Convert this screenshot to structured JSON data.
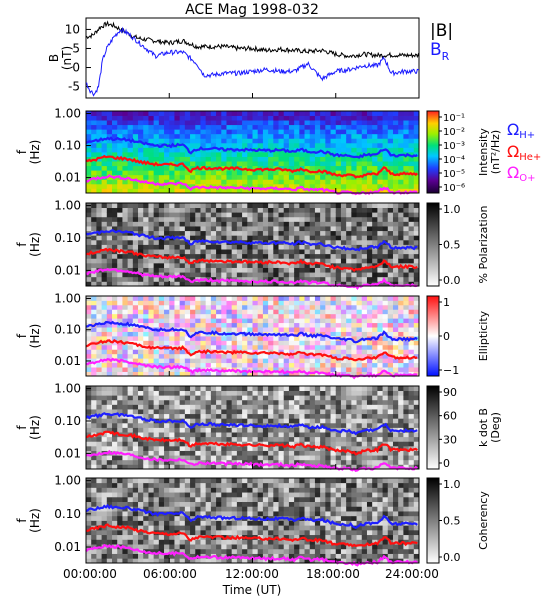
{
  "title": "ACE Mag 1998-032",
  "colors": {
    "total_B": "#000000",
    "B_R": "#1a1aff",
    "H_plus": "#1f1fff",
    "He_plus": "#ff1010",
    "O_plus": "#ff20ff"
  },
  "chart_data": [
    {
      "type": "line",
      "ylabel_main": "B",
      "ylabel_unit": "(nT)",
      "ylim": [
        -8,
        13
      ],
      "xlim_hours": [
        0,
        24
      ],
      "yticks": [
        "10",
        "5",
        "0",
        "-5"
      ],
      "ytick_values": [
        10,
        5,
        0,
        -5
      ],
      "legend": {
        "total": "|B|",
        "radial": "B",
        "radial_sub": "R"
      },
      "series": [
        {
          "name": "|B|",
          "color_key": "total_B",
          "x_hours": [
            0,
            0.5,
            1,
            1.5,
            2,
            2.5,
            3,
            3.5,
            4,
            5,
            6,
            7,
            8,
            9,
            10,
            11,
            12,
            13,
            14,
            15,
            16,
            17,
            18,
            19,
            20,
            21,
            22,
            23,
            24
          ],
          "values": [
            8,
            8.5,
            10.5,
            11.5,
            11,
            10,
            9,
            8,
            7.5,
            7,
            6.5,
            7,
            5.5,
            5.5,
            5.5,
            5,
            5,
            4.5,
            4.8,
            4.5,
            4.2,
            4.5,
            3.5,
            3,
            3.5,
            3.2,
            3.3,
            3.2,
            3.2
          ]
        },
        {
          "name": "B_R",
          "color_key": "B_R",
          "x_hours": [
            0,
            0.3,
            0.6,
            0.9,
            1.2,
            1.5,
            2,
            2.5,
            3,
            4,
            5,
            6,
            7,
            8,
            8.5,
            9,
            10,
            11,
            12,
            13,
            14,
            15,
            16,
            17,
            18,
            19,
            20,
            21,
            21.5,
            22,
            23,
            24
          ],
          "values": [
            -4,
            -6,
            -7,
            -5,
            2,
            5,
            8,
            10,
            9,
            6,
            3,
            4,
            4,
            1,
            -2,
            -2,
            -1.5,
            -1.5,
            -1,
            -0.5,
            -1,
            -1,
            1,
            -3,
            -1,
            -0.5,
            0.5,
            0.5,
            2.5,
            -1.5,
            -1,
            -1
          ]
        }
      ]
    },
    {
      "type": "heatmap",
      "quantity": "Intensity",
      "ylabel_main": "f",
      "ylabel_unit": "(Hz)",
      "yticks": [
        "1.00",
        "0.10",
        "0.01"
      ],
      "colorbar": {
        "label_main": "Intensity",
        "label_unit": "(nT²/Hz)",
        "ticks": [
          "10⁻¹",
          "10⁻²",
          "10⁻³",
          "10⁻⁴",
          "10⁻⁵",
          "10⁻⁶"
        ]
      },
      "gyro_legend": [
        "Ω",
        "H+",
        "Ω",
        "He+",
        "Ω",
        "O+"
      ]
    },
    {
      "type": "heatmap",
      "quantity": "% Polarization",
      "ylabel_main": "f",
      "ylabel_unit": "(Hz)",
      "yticks": [
        "1.00",
        "0.10",
        "0.01"
      ],
      "colorbar": {
        "label_main": "% Polarization",
        "label_unit": "",
        "ticks": [
          "1.0",
          "0.5",
          "0.0"
        ]
      }
    },
    {
      "type": "heatmap",
      "quantity": "Ellipticity",
      "ylabel_main": "f",
      "ylabel_unit": "(Hz)",
      "yticks": [
        "1.00",
        "0.10",
        "0.01"
      ],
      "colorbar": {
        "label_main": "Ellipticity",
        "label_unit": "",
        "ticks": [
          "1",
          "0",
          "−1"
        ]
      }
    },
    {
      "type": "heatmap",
      "quantity": "k dot B",
      "ylabel_main": "f",
      "ylabel_unit": "(Hz)",
      "yticks": [
        "1.00",
        "0.10",
        "0.01"
      ],
      "colorbar": {
        "label_main": "k dot B",
        "label_unit": "(Deg)",
        "ticks": [
          "90",
          "60",
          "30",
          "0"
        ]
      }
    },
    {
      "type": "heatmap",
      "quantity": "Coherency",
      "ylabel_main": "f",
      "ylabel_unit": "(Hz)",
      "yticks": [
        "1.00",
        "0.10",
        "0.01"
      ],
      "colorbar": {
        "label_main": "Coherency",
        "label_unit": "",
        "ticks": [
          "1.0",
          "0.5",
          "0.0"
        ]
      }
    }
  ],
  "gyrofrequency": {
    "xlim_hours": [
      0,
      24
    ],
    "ylim_hz_log": [
      0.0033,
      1.2
    ],
    "x_hours": [
      0,
      0.5,
      1,
      1.5,
      2,
      3,
      4,
      5,
      6,
      7,
      7.5,
      8,
      9,
      10,
      11,
      12,
      13,
      14,
      15,
      15.5,
      16,
      17,
      18,
      19,
      19.5,
      20,
      21,
      21.5,
      22,
      23,
      24
    ],
    "H_plus_hz": [
      0.13,
      0.14,
      0.15,
      0.17,
      0.16,
      0.15,
      0.12,
      0.1,
      0.1,
      0.105,
      0.06,
      0.08,
      0.08,
      0.075,
      0.075,
      0.072,
      0.07,
      0.072,
      0.065,
      0.075,
      0.065,
      0.065,
      0.05,
      0.048,
      0.04,
      0.05,
      0.053,
      0.08,
      0.05,
      0.05,
      0.05
    ],
    "He_plus_hz": [
      0.032,
      0.035,
      0.04,
      0.045,
      0.042,
      0.038,
      0.03,
      0.026,
      0.025,
      0.026,
      0.016,
      0.02,
      0.02,
      0.019,
      0.019,
      0.018,
      0.018,
      0.018,
      0.016,
      0.019,
      0.016,
      0.016,
      0.012,
      0.012,
      0.01,
      0.012,
      0.013,
      0.02,
      0.013,
      0.013,
      0.013
    ],
    "O_plus_hz": [
      0.008,
      0.009,
      0.01,
      0.011,
      0.0105,
      0.0095,
      0.0075,
      0.0065,
      0.0063,
      0.0066,
      0.0045,
      0.005,
      0.005,
      0.0048,
      0.0048,
      0.0046,
      0.0045,
      0.0046,
      0.0042,
      0.0048,
      0.0042,
      0.0042,
      0.0034,
      0.0034,
      0.003,
      0.0034,
      0.0035,
      0.005,
      0.0035,
      0.0035,
      0.0035
    ]
  },
  "xaxis": {
    "ticks": [
      "00:00:00",
      "06:00:00",
      "12:00:00",
      "18:00:00",
      "24:00:00"
    ],
    "tick_hours": [
      0,
      6,
      12,
      18,
      24
    ],
    "label": "Time (UT)"
  }
}
